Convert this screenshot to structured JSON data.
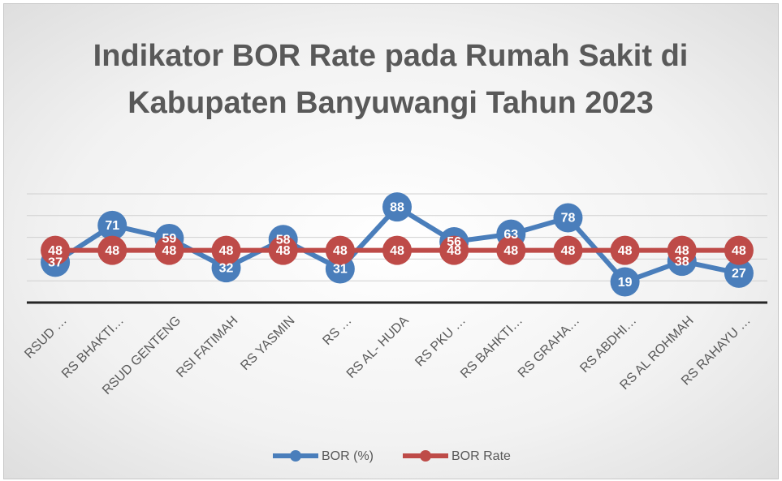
{
  "chart_data": {
    "type": "line",
    "title": "Indikator BOR Rate pada Rumah Sakit di Kabupaten Banyuwangi Tahun 2023",
    "categories": [
      "RSUD …",
      "RS BHAKTI…",
      "RSUD GENTENG",
      "RSI FATIMAH",
      "RS YASMIN",
      "RS …",
      "RS AL- HUDA",
      "RS PKU …",
      "RS BAHKTI…",
      "RS GRAHA…",
      "RS ABDHI…",
      "RS AL ROHMAH",
      "RS RAHAYU …"
    ],
    "series": [
      {
        "name": "BOR (%)",
        "color": "#4a7ebb",
        "values": [
          37,
          71,
          59,
          32,
          58,
          31,
          88,
          56,
          63,
          78,
          19,
          38,
          27
        ]
      },
      {
        "name": "BOR Rate",
        "color": "#be4b48",
        "values": [
          48,
          48,
          48,
          48,
          48,
          48,
          48,
          48,
          48,
          48,
          48,
          48,
          48
        ]
      }
    ],
    "ylim": [
      0,
      100
    ],
    "yticks": [
      0,
      20,
      40,
      60,
      80,
      100
    ],
    "grid": true,
    "legend": "bottom"
  }
}
